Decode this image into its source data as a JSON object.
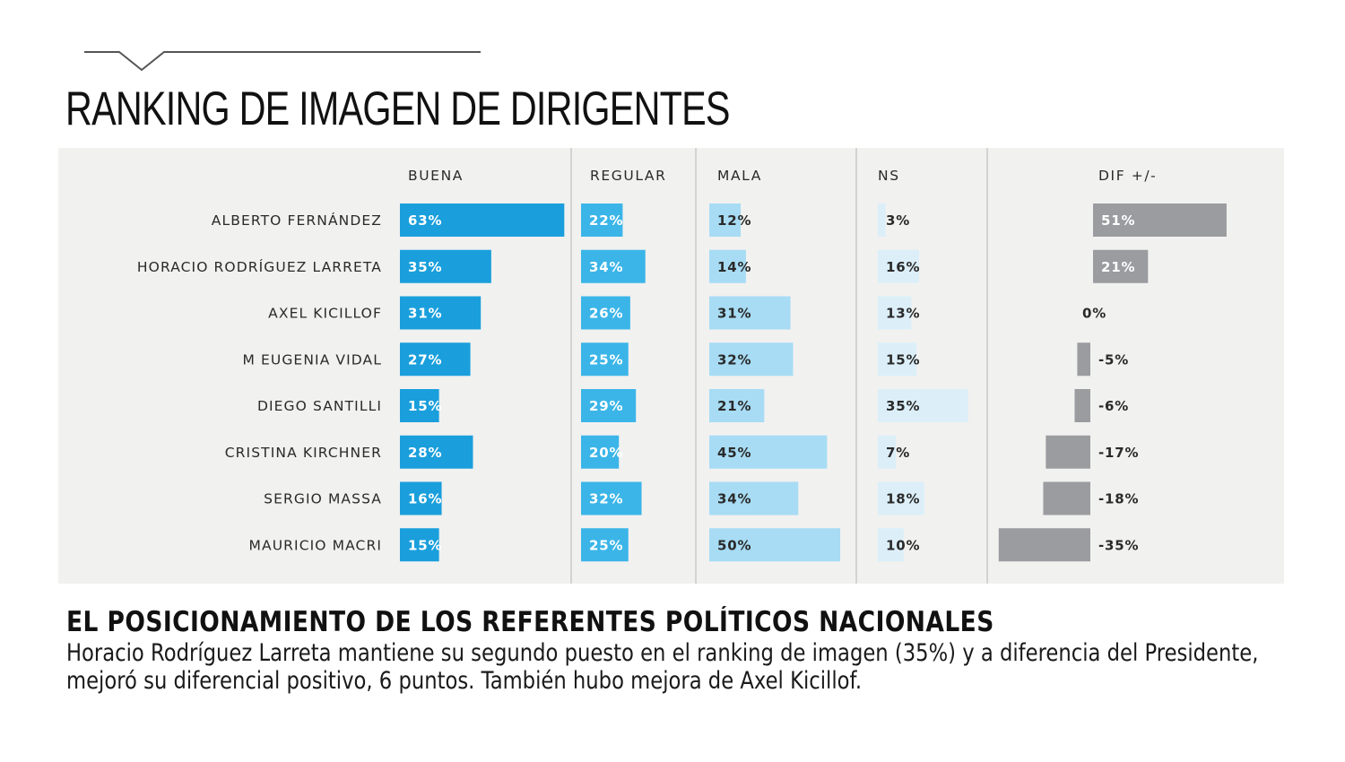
{
  "title": "RANKING DE IMAGEN DE DIRIGENTES",
  "subtitle": "EL POSICIONAMIENTO DE LOS REFERENTES POLÍTICOS NACIONALES",
  "description": "Horacio Rodríguez Larreta mantiene su segundo puesto en el ranking de imagen (35%) y a diferencia del Presidente, mejoró su diferencial positivo, 6 puntos. También hubo mejora de Axel Kicillof.",
  "colors": {
    "buena": "#1a9fdc",
    "regular": "#3bb5e8",
    "mala": "#a7dcf4",
    "ns": "#dceff9",
    "dif": "#9a9c9f",
    "panel": "#f1f1f0",
    "separator": "#c9c9c9"
  },
  "chart_data": {
    "type": "bar",
    "title": "RANKING DE IMAGEN DE DIRIGENTES",
    "unit": "%",
    "categories": [
      "ALBERTO FERNÁNDEZ",
      "HORACIO RODRÍGUEZ LARRETA",
      "AXEL KICILLOF",
      "M EUGENIA VIDAL",
      "DIEGO SANTILLI",
      "CRISTINA KIRCHNER",
      "SERGIO MASSA",
      "MAURICIO MACRI"
    ],
    "series": [
      {
        "name": "BUENA",
        "values": [
          63,
          35,
          31,
          27,
          15,
          28,
          16,
          15
        ]
      },
      {
        "name": "REGULAR",
        "values": [
          22,
          34,
          26,
          25,
          29,
          20,
          32,
          25
        ]
      },
      {
        "name": "MALA",
        "values": [
          12,
          14,
          31,
          32,
          21,
          45,
          34,
          50
        ]
      },
      {
        "name": "NS",
        "values": [
          3,
          16,
          13,
          15,
          35,
          7,
          18,
          10
        ]
      },
      {
        "name": "DIF +/-",
        "values": [
          51,
          21,
          0,
          -5,
          -6,
          -17,
          -18,
          -35
        ]
      }
    ],
    "grid": false,
    "legend": "none"
  }
}
